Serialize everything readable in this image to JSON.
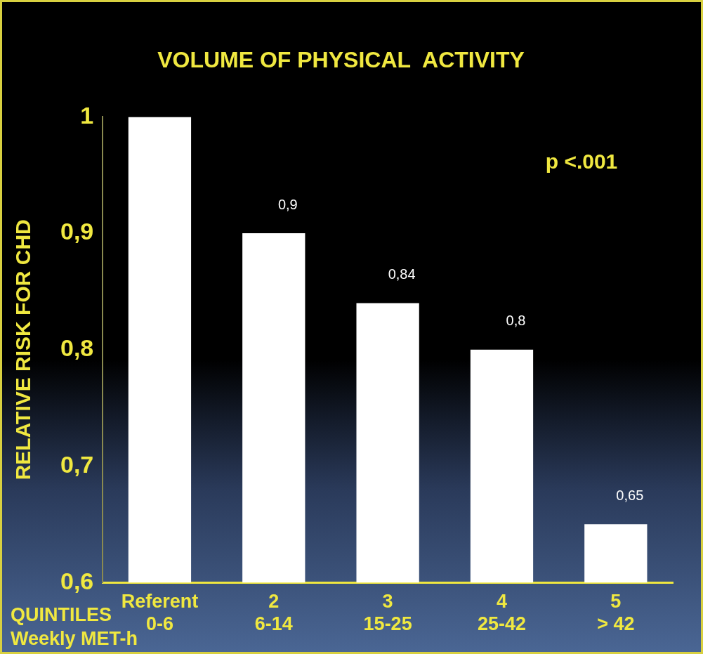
{
  "chart_data": {
    "type": "bar",
    "title": "VOLUME OF PHYSICAL  ACTIVITY",
    "ylabel": "RELATIVE RISK FOR CHD",
    "xlabel": "QUINTILES\nWeekly MET-h",
    "categories": [
      "Referent\n0-6",
      "2\n6-14",
      "3\n15-25",
      "4\n25-42",
      "5\n> 42"
    ],
    "values": [
      1,
      0.9,
      0.84,
      0.8,
      0.65
    ],
    "color": "#ffffff",
    "value_labels": [
      null,
      "0,9",
      "0,84",
      "0,8",
      "0,65"
    ],
    "ylim": [
      0.6,
      1
    ],
    "yticks": [
      {
        "value": 0.6,
        "label": "0,6"
      },
      {
        "value": 0.7,
        "label": "0,7"
      },
      {
        "value": 0.8,
        "label": "0,8"
      },
      {
        "value": 0.9,
        "label": "0,9"
      },
      1
    ],
    "annotations": [
      "p <.001"
    ],
    "grid": false,
    "legend": false
  }
}
